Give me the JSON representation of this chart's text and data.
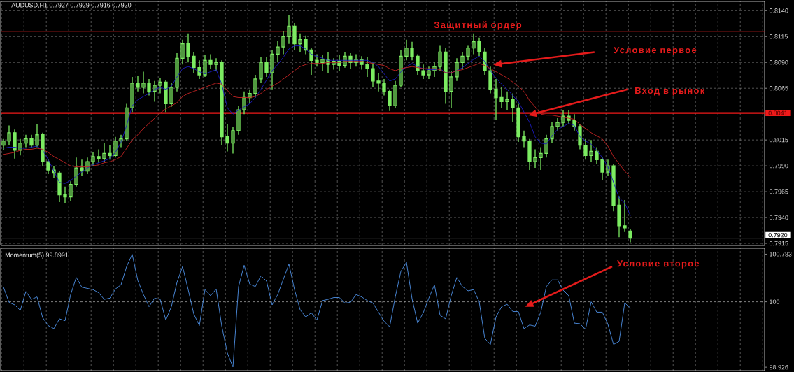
{
  "chart_data": [
    {
      "type": "candlestick",
      "title": "AUDUSD,H1 0.7927 0.7929 0.7916 0.7920",
      "categories": [
        null,
        null,
        null,
        null,
        null,
        null,
        null,
        null,
        null,
        null,
        null,
        null,
        null,
        null,
        null,
        null,
        null,
        null,
        null,
        null,
        null,
        null,
        null,
        null,
        null,
        null,
        null,
        null,
        null,
        null,
        null,
        null,
        null,
        null,
        null,
        null,
        null,
        null,
        null,
        null,
        null,
        null,
        null,
        null,
        null,
        null,
        null,
        null,
        null,
        null,
        null,
        null,
        null,
        null,
        null,
        null,
        null,
        null,
        null,
        null,
        null,
        null,
        null,
        null,
        null,
        null,
        null,
        null,
        null,
        null,
        null,
        null,
        null,
        null,
        null,
        null,
        null,
        null,
        null,
        null,
        null,
        null,
        null,
        null,
        null,
        null,
        null,
        null,
        null,
        null,
        null,
        null,
        null,
        null,
        null,
        null,
        null,
        null,
        null,
        null,
        null,
        null,
        null,
        null,
        null,
        null,
        null,
        null,
        null,
        null,
        null,
        null,
        null
      ],
      "color": "#7cec62",
      "ohlc": [
        [
          0.801,
          0.8016,
          0.8005,
          0.8014
        ],
        [
          0.8014,
          0.8029,
          0.801,
          0.8022
        ],
        [
          0.8022,
          0.8025,
          0.7997,
          0.8005
        ],
        [
          0.8005,
          0.8016,
          0.8,
          0.8012
        ],
        [
          0.8012,
          0.802,
          0.8008,
          0.8016
        ],
        [
          0.8016,
          0.802,
          0.8007,
          0.801
        ],
        [
          0.801,
          0.803,
          0.8008,
          0.802
        ],
        [
          0.802,
          0.8022,
          0.799,
          0.7994
        ],
        [
          0.7994,
          0.7996,
          0.7982,
          0.7986
        ],
        [
          0.7986,
          0.799,
          0.7978,
          0.7983
        ],
        [
          0.7983,
          0.7985,
          0.7955,
          0.7962
        ],
        [
          0.7962,
          0.797,
          0.7954,
          0.796
        ],
        [
          0.796,
          0.7975,
          0.7956,
          0.7972
        ],
        [
          0.7972,
          0.7998,
          0.797,
          0.7988
        ],
        [
          0.7988,
          0.7996,
          0.798,
          0.7985
        ],
        [
          0.7985,
          0.7998,
          0.7982,
          0.7994
        ],
        [
          0.7994,
          0.8003,
          0.799,
          0.7999
        ],
        [
          0.7999,
          0.8006,
          0.7993,
          0.7997
        ],
        [
          0.7997,
          0.8012,
          0.7994,
          0.8002
        ],
        [
          0.8002,
          0.801,
          0.7996,
          0.8
        ],
        [
          0.8,
          0.8018,
          0.7998,
          0.8014
        ],
        [
          0.8014,
          0.802,
          0.8008,
          0.8016
        ],
        [
          0.8016,
          0.805,
          0.8014,
          0.8046
        ],
        [
          0.8046,
          0.8076,
          0.8042,
          0.807
        ],
        [
          0.807,
          0.8077,
          0.8062,
          0.8066
        ],
        [
          0.8066,
          0.8081,
          0.806,
          0.807
        ],
        [
          0.807,
          0.8074,
          0.8058,
          0.8062
        ],
        [
          0.8062,
          0.8072,
          0.8052,
          0.8068
        ],
        [
          0.8068,
          0.8075,
          0.806,
          0.8071
        ],
        [
          0.8071,
          0.8073,
          0.8042,
          0.805
        ],
        [
          0.805,
          0.807,
          0.8047,
          0.8066
        ],
        [
          0.8066,
          0.8099,
          0.8062,
          0.8094
        ],
        [
          0.8094,
          0.8112,
          0.8088,
          0.8108
        ],
        [
          0.8108,
          0.8118,
          0.809,
          0.8096
        ],
        [
          0.8096,
          0.81,
          0.808,
          0.8085
        ],
        [
          0.8085,
          0.8092,
          0.8074,
          0.8078
        ],
        [
          0.8078,
          0.8097,
          0.8076,
          0.8092
        ],
        [
          0.8092,
          0.8098,
          0.8084,
          0.8088
        ],
        [
          0.8088,
          0.8094,
          0.8082,
          0.809
        ],
        [
          0.809,
          0.8092,
          0.801,
          0.8018
        ],
        [
          0.8018,
          0.803,
          0.8004,
          0.8012
        ],
        [
          0.8012,
          0.8028,
          0.8002,
          0.8024
        ],
        [
          0.8024,
          0.8048,
          0.802,
          0.8044
        ],
        [
          0.8044,
          0.8062,
          0.804,
          0.8056
        ],
        [
          0.8056,
          0.8064,
          0.805,
          0.806
        ],
        [
          0.806,
          0.8078,
          0.8056,
          0.8074
        ],
        [
          0.8074,
          0.8095,
          0.807,
          0.809
        ],
        [
          0.809,
          0.8095,
          0.8076,
          0.808
        ],
        [
          0.808,
          0.8102,
          0.8064,
          0.8098
        ],
        [
          0.8098,
          0.8111,
          0.809,
          0.8105
        ],
        [
          0.8105,
          0.812,
          0.8098,
          0.8115
        ],
        [
          0.8115,
          0.8136,
          0.8108,
          0.8125
        ],
        [
          0.8125,
          0.8128,
          0.8102,
          0.8108
        ],
        [
          0.8108,
          0.8118,
          0.81,
          0.8112
        ],
        [
          0.8112,
          0.8116,
          0.8098,
          0.8102
        ],
        [
          0.8102,
          0.8104,
          0.8078,
          0.8092
        ],
        [
          0.8092,
          0.8098,
          0.8086,
          0.809
        ],
        [
          0.809,
          0.8097,
          0.8082,
          0.8093
        ],
        [
          0.8093,
          0.81,
          0.808,
          0.8088
        ],
        [
          0.8088,
          0.8094,
          0.8083,
          0.8091
        ],
        [
          0.8091,
          0.8097,
          0.8082,
          0.8087
        ],
        [
          0.8087,
          0.81,
          0.8085,
          0.8096
        ],
        [
          0.8096,
          0.8099,
          0.8084,
          0.809
        ],
        [
          0.809,
          0.8098,
          0.8086,
          0.8093
        ],
        [
          0.8093,
          0.8096,
          0.8083,
          0.8088
        ],
        [
          0.8088,
          0.8095,
          0.8076,
          0.8084
        ],
        [
          0.8084,
          0.809,
          0.8066,
          0.8072
        ],
        [
          0.8072,
          0.808,
          0.8062,
          0.807
        ],
        [
          0.807,
          0.8074,
          0.8058,
          0.8062
        ],
        [
          0.8062,
          0.8064,
          0.8043,
          0.8048
        ],
        [
          0.8048,
          0.8072,
          0.8046,
          0.8068
        ],
        [
          0.8068,
          0.8102,
          0.8066,
          0.8096
        ],
        [
          0.8096,
          0.8112,
          0.8092,
          0.8104
        ],
        [
          0.8104,
          0.811,
          0.8092,
          0.8096
        ],
        [
          0.8096,
          0.8098,
          0.8078,
          0.8082
        ],
        [
          0.8082,
          0.8088,
          0.8074,
          0.8078
        ],
        [
          0.8078,
          0.8086,
          0.8074,
          0.8082
        ],
        [
          0.8082,
          0.809,
          0.8076,
          0.8086
        ],
        [
          0.8086,
          0.8106,
          0.8082,
          0.81
        ],
        [
          0.81,
          0.8104,
          0.805,
          0.8062
        ],
        [
          0.8062,
          0.8082,
          0.8046,
          0.8076
        ],
        [
          0.8076,
          0.8094,
          0.8072,
          0.809
        ],
        [
          0.809,
          0.81,
          0.8084,
          0.8096
        ],
        [
          0.8096,
          0.8106,
          0.8092,
          0.8104
        ],
        [
          0.8104,
          0.8118,
          0.8098,
          0.811
        ],
        [
          0.811,
          0.8114,
          0.8096,
          0.81
        ],
        [
          0.81,
          0.8104,
          0.8078,
          0.8082
        ],
        [
          0.8082,
          0.8086,
          0.806,
          0.8064
        ],
        [
          0.8064,
          0.8074,
          0.8034,
          0.8056
        ],
        [
          0.8056,
          0.8066,
          0.8046,
          0.8052
        ],
        [
          0.8052,
          0.8062,
          0.8044,
          0.8054
        ],
        [
          0.8054,
          0.806,
          0.8032,
          0.8046
        ],
        [
          0.8046,
          0.805,
          0.8013,
          0.8018
        ],
        [
          0.8018,
          0.8024,
          0.8008,
          0.8014
        ],
        [
          0.8014,
          0.8016,
          0.7986,
          0.7994
        ],
        [
          0.7994,
          0.8006,
          0.7988,
          0.7998
        ],
        [
          0.7998,
          0.8008,
          0.7986,
          0.8002
        ],
        [
          0.8002,
          0.802,
          0.7998,
          0.8016
        ],
        [
          0.8016,
          0.8032,
          0.8012,
          0.8028
        ],
        [
          0.8028,
          0.8036,
          0.8024,
          0.8032
        ],
        [
          0.8032,
          0.8044,
          0.8028,
          0.8038
        ],
        [
          0.8038,
          0.8044,
          0.803,
          0.8034
        ],
        [
          0.8034,
          0.804,
          0.8024,
          0.8028
        ],
        [
          0.8028,
          0.803,
          0.8006,
          0.801
        ],
        [
          0.801,
          0.8016,
          0.7996,
          0.8
        ],
        [
          0.8,
          0.8015,
          0.7994,
          0.8004
        ],
        [
          0.8004,
          0.8008,
          0.7992,
          0.7996
        ],
        [
          0.7996,
          0.7998,
          0.7976,
          0.7984
        ],
        [
          0.7984,
          0.7996,
          0.798,
          0.799
        ],
        [
          0.799,
          0.7992,
          0.7946,
          0.7952
        ],
        [
          0.7952,
          0.796,
          0.7921,
          0.7932
        ],
        [
          0.7932,
          0.7957,
          0.7926,
          0.793
        ],
        [
          0.7927,
          0.7929,
          0.7916,
          0.792
        ]
      ],
      "series": [
        {
          "type": "line",
          "color": "#1c1cc4",
          "values": [
            0.8007,
            0.8008,
            0.8008,
            0.8007,
            0.8007,
            0.8008,
            0.8009,
            0.8005,
            0.7996,
            0.7985,
            0.7974,
            0.7973,
            0.7976,
            0.798,
            0.7984,
            0.7988,
            0.7991,
            0.7993,
            0.7995,
            0.7997,
            0.8003,
            0.8013,
            0.8029,
            0.8048,
            0.8054,
            0.8057,
            0.806,
            0.8064,
            0.8066,
            0.8064,
            0.8067,
            0.8076,
            0.8084,
            0.8086,
            0.8084,
            0.8081,
            0.8079,
            0.8081,
            0.8083,
            0.8069,
            0.8046,
            0.804,
            0.8044,
            0.8047,
            0.805,
            0.8056,
            0.8064,
            0.8073,
            0.8082,
            0.8088,
            0.8095,
            0.8103,
            0.8106,
            0.8106,
            0.8103,
            0.8098,
            0.8096,
            0.8094,
            0.8092,
            0.8092,
            0.8092,
            0.8092,
            0.8092,
            0.8092,
            0.8092,
            0.8092,
            0.809,
            0.8086,
            0.8079,
            0.8072,
            0.8074,
            0.8081,
            0.8086,
            0.8089,
            0.8086,
            0.8084,
            0.8083,
            0.8083,
            0.8084,
            0.808,
            0.808,
            0.8082,
            0.8085,
            0.8089,
            0.8093,
            0.8096,
            0.8091,
            0.8082,
            0.8075,
            0.8069,
            0.8064,
            0.8058,
            0.8052,
            0.8042,
            0.8032,
            0.8018,
            0.8012,
            0.8011,
            0.8019,
            0.8025,
            0.8028,
            0.8031,
            0.8029,
            0.8018,
            0.8014,
            0.8011,
            0.8005,
            0.7998,
            0.7989,
            0.7974,
            0.7959,
            0.7954,
            0.7942
          ]
        },
        {
          "type": "line",
          "color": "#c42424",
          "values": [
            0.8001,
            0.8002,
            0.8003,
            0.8005,
            0.8006,
            0.8006,
            0.8007,
            0.8006,
            0.8003,
            0.7999,
            0.7996,
            0.7993,
            0.799,
            0.7989,
            0.7989,
            0.7989,
            0.799,
            0.7991,
            0.7993,
            0.7994,
            0.7996,
            0.7999,
            0.8007,
            0.8015,
            0.802,
            0.8026,
            0.8031,
            0.8036,
            0.8041,
            0.8045,
            0.8048,
            0.8051,
            0.8057,
            0.806,
            0.8062,
            0.8064,
            0.8066,
            0.8068,
            0.807,
            0.8069,
            0.8063,
            0.8057,
            0.8056,
            0.8056,
            0.8056,
            0.8057,
            0.806,
            0.8064,
            0.8067,
            0.807,
            0.8074,
            0.8078,
            0.8082,
            0.8086,
            0.8088,
            0.8089,
            0.8089,
            0.8089,
            0.809,
            0.809,
            0.809,
            0.8091,
            0.8091,
            0.8091,
            0.8091,
            0.809,
            0.8089,
            0.8088,
            0.8087,
            0.8084,
            0.8082,
            0.8084,
            0.8085,
            0.8086,
            0.8085,
            0.8084,
            0.8084,
            0.8084,
            0.8083,
            0.808,
            0.808,
            0.8082,
            0.8083,
            0.8085,
            0.8087,
            0.8089,
            0.8087,
            0.8084,
            0.8081,
            0.8078,
            0.8075,
            0.8071,
            0.8067,
            0.8062,
            0.8053,
            0.8047,
            0.804,
            0.8039,
            0.8039,
            0.8038,
            0.8037,
            0.8036,
            0.8035,
            0.803,
            0.8026,
            0.8022,
            0.8019,
            0.8016,
            0.8009,
            0.7999,
            0.7992,
            0.7985,
            0.7979
          ]
        }
      ],
      "ylim": [
        0.7913,
        0.8149
      ],
      "yticks": [
        0.7915,
        {
          "value": 0.794,
          "label": "0.7940"
        },
        0.7965,
        {
          "value": 0.799,
          "label": "0.7990"
        },
        0.8015,
        0.8065,
        {
          "value": 0.809,
          "label": "0.8090"
        },
        0.8115,
        {
          "value": 0.814,
          "label": "0.8140"
        }
      ],
      "grid": true,
      "tick_labels": "y",
      "ref_lines": [
        {
          "axis": "y",
          "value": 0.812,
          "label": "Защитный ордер",
          "color": "#b41c1c"
        },
        {
          "axis": "y",
          "value": 0.8041,
          "label": "0.8041",
          "color": "#f01a1a"
        },
        {
          "axis": "y",
          "value": 0.792,
          "label": "0.7920",
          "color": "#8c8c8c"
        }
      ],
      "annotations": [
        "Условие первое",
        "Вход в рынок"
      ]
    },
    {
      "type": "line",
      "title": "Momentum(5) 99.8991",
      "categories": [
        null,
        null,
        null,
        null,
        null,
        null,
        null,
        null,
        null,
        null,
        null,
        null,
        null,
        null,
        null,
        null,
        null,
        null,
        null,
        null,
        null,
        null,
        null,
        null,
        null,
        null,
        null,
        null,
        null,
        null,
        null,
        null,
        null,
        null,
        null,
        null,
        null,
        null,
        null,
        null,
        null,
        null,
        null,
        null,
        null,
        null,
        null,
        null,
        null,
        null,
        null,
        null,
        null,
        null,
        null,
        null,
        null,
        null,
        null,
        null,
        null,
        null,
        null,
        null,
        null,
        null,
        null,
        null,
        null,
        null,
        null,
        null,
        null,
        null,
        null,
        null,
        null,
        null,
        null,
        null,
        null,
        null,
        null,
        null,
        null,
        null,
        null,
        null,
        null,
        null,
        null,
        null,
        null,
        null,
        null,
        null,
        null,
        null,
        null,
        null,
        null,
        null,
        null,
        null,
        null,
        null,
        null,
        null,
        null,
        null,
        null,
        null,
        null
      ],
      "color": "#4f92e8",
      "values": [
        100.24,
        99.99,
        99.95,
        99.86,
        100.17,
        100.04,
        100.08,
        99.74,
        99.61,
        99.56,
        99.72,
        99.69,
        100.12,
        100.4,
        100.24,
        100.22,
        100.2,
        100.15,
        100.04,
        100.06,
        100.21,
        100.28,
        100.58,
        100.78,
        100.35,
        100.12,
        99.92,
        100.06,
        100.04,
        99.7,
        99.92,
        100.32,
        100.58,
        100.2,
        99.8,
        99.61,
        100.2,
        100.1,
        100.21,
        99.6,
        99.16,
        98.93,
        100.25,
        100.6,
        100.29,
        100.25,
        100.43,
        100.34,
        99.95,
        100.12,
        100.37,
        100.62,
        100.2,
        99.87,
        99.75,
        99.82,
        99.7,
        100.02,
        100.04,
        100.07,
        100.07,
        99.98,
        99.99,
        100.12,
        100.08,
        100.02,
        99.98,
        99.83,
        99.68,
        99.59,
        100.08,
        100.5,
        100.65,
        100.05,
        99.65,
        99.82,
        100.06,
        100.28,
        99.78,
        99.72,
        100.1,
        100.4,
        100.25,
        100.18,
        100.2,
        100.0,
        99.4,
        99.3,
        99.75,
        99.92,
        99.96,
        99.84,
        99.84,
        99.56,
        99.62,
        99.6,
        99.83,
        100.25,
        100.36,
        100.36,
        100.19,
        100.1,
        99.65,
        99.64,
        99.55,
        100.0,
        99.83,
        99.83,
        99.63,
        99.3,
        99.35,
        99.98,
        99.9
      ],
      "ylim": [
        98.87,
        100.88
      ],
      "yticks": [
        98.926,
        100,
        100.783
      ],
      "grid": "x",
      "tick_labels": "y",
      "ref_lines": [
        {
          "axis": "y",
          "value": 100,
          "color": "#b4b4b4",
          "line_style": "dashed"
        }
      ],
      "annotations": [
        "Условие второе"
      ]
    }
  ]
}
